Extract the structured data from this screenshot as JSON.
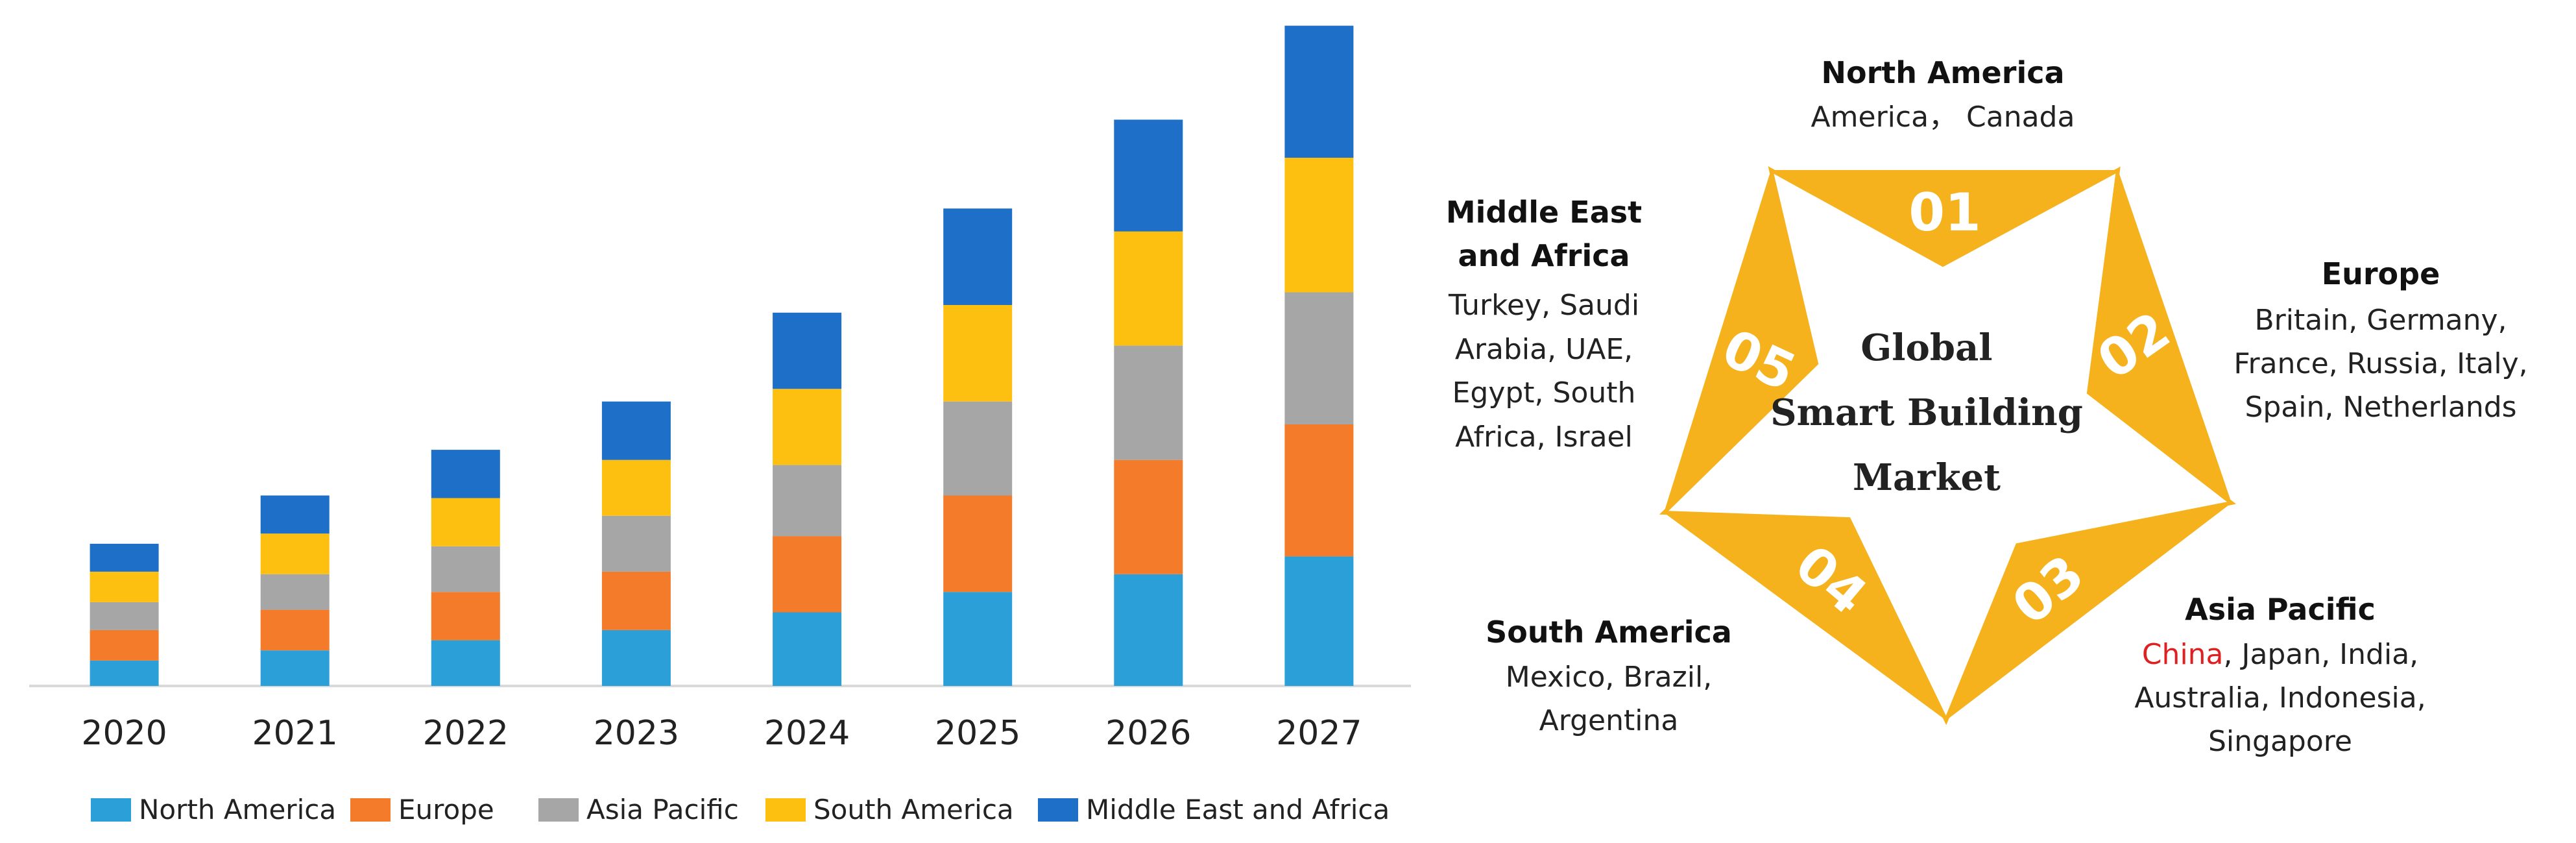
{
  "chart_data": [
    {
      "type": "bar",
      "stacked": true,
      "categories": [
        "2020",
        "2021",
        "2022",
        "2023",
        "2024",
        "2025",
        "2026",
        "2027"
      ],
      "series": [
        {
          "name": "North America",
          "color": "#2a9fd8",
          "values": [
            1.0,
            1.4,
            1.8,
            2.2,
            2.9,
            3.7,
            4.4,
            5.1
          ]
        },
        {
          "name": "Europe",
          "color": "#f47b2a",
          "values": [
            1.2,
            1.6,
            1.9,
            2.3,
            3.0,
            3.8,
            4.5,
            5.2
          ]
        },
        {
          "name": "Asia Pacific",
          "color": "#a6a6a6",
          "values": [
            1.1,
            1.4,
            1.8,
            2.2,
            2.8,
            3.7,
            4.5,
            5.2
          ]
        },
        {
          "name": "South America",
          "color": "#fdc010",
          "values": [
            1.2,
            1.6,
            1.9,
            2.2,
            3.0,
            3.8,
            4.5,
            5.3
          ]
        },
        {
          "name": "Middle East and Africa",
          "color": "#1e6fc8",
          "values": [
            1.1,
            1.5,
            1.9,
            2.3,
            3.0,
            3.8,
            4.4,
            5.2
          ]
        }
      ],
      "ylim": [
        0,
        26.5
      ],
      "legend_position": "bottom",
      "grid": false,
      "title": "",
      "xlabel": "",
      "ylabel": ""
    }
  ],
  "star_diagram": {
    "center_lines": [
      "Global",
      "Smart Building",
      "Market"
    ],
    "star_color": "#f5b21c",
    "points": [
      {
        "number": "01",
        "title_lines": [
          "North America"
        ],
        "detail_lines": [
          "America， Canada"
        ]
      },
      {
        "number": "02",
        "title_lines": [
          "Europe"
        ],
        "detail_lines": [
          "Britain, Germany,",
          "France, Russia, Italy,",
          "Spain, Netherlands"
        ]
      },
      {
        "number": "03",
        "title_lines": [
          "Asia Pacific"
        ],
        "detail_lines": [
          "China, Japan, India,",
          "Australia, Indonesia,",
          "Singapore"
        ],
        "highlight": {
          "text": "China",
          "color": "#e02020"
        }
      },
      {
        "number": "04",
        "title_lines": [
          "South America"
        ],
        "detail_lines": [
          "Mexico, Brazil,",
          "Argentina"
        ]
      },
      {
        "number": "05",
        "title_lines": [
          "Middle East",
          "and Africa"
        ],
        "detail_lines": [
          "Turkey, Saudi",
          "Arabia, UAE,",
          "Egypt, South",
          "Africa, Israel"
        ]
      }
    ]
  }
}
